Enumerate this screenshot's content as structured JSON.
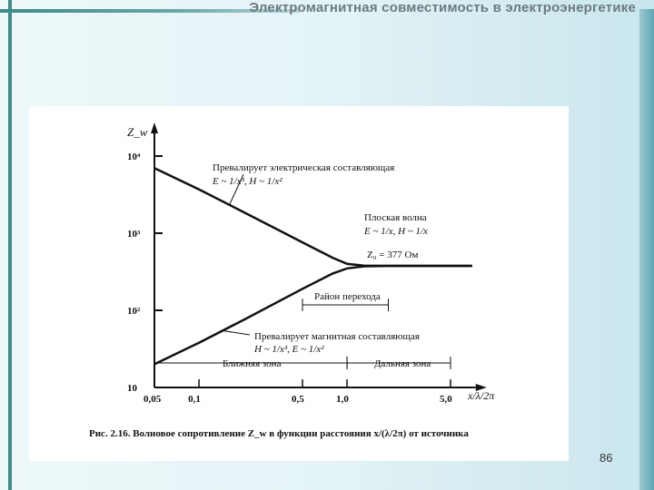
{
  "header": {
    "title": "Электромагнитная совместимость в электроэнергетике"
  },
  "page_number": "86",
  "colors": {
    "frame": "#3f8a8a",
    "background": "#e4f3f6",
    "curve": "#111111"
  },
  "chart_data": {
    "type": "line",
    "xscale": "log",
    "yscale": "log",
    "xlabel": "x/λ/2π",
    "ylabel": "Z_w",
    "xlim": [
      0.05,
      7
    ],
    "ylim": [
      10,
      20000
    ],
    "x_ticks": [
      "0,05",
      "0,1",
      "0,5",
      "1,0",
      "5,0"
    ],
    "x_tick_values": [
      0.05,
      0.1,
      0.5,
      1.0,
      5.0
    ],
    "y_ticks": [
      "10",
      "10²",
      "10³",
      "10⁴"
    ],
    "y_tick_values": [
      10,
      100,
      1000,
      10000
    ],
    "series": [
      {
        "x": [
          0.05,
          0.1,
          0.2,
          0.5,
          0.8,
          1.0,
          1.3,
          2,
          5,
          7
        ],
        "y": [
          7000,
          3700,
          1880,
          760,
          480,
          400,
          380,
          377,
          377,
          377
        ]
      },
      {
        "x": [
          0.05,
          0.1,
          0.2,
          0.5,
          0.8,
          1.0,
          1.3,
          2,
          5,
          7
        ],
        "y": [
          20,
          38,
          75,
          190,
          300,
          350,
          372,
          377,
          377,
          377
        ]
      }
    ],
    "annotations": {
      "electric": [
        "Превалирует электрическая составляющая",
        "E ~ 1/x³, H ~ 1/x²"
      ],
      "plane": [
        "Плоская волна",
        "E ~ 1/x, H ~ 1/x"
      ],
      "z0": "Z₀ = 377 Ом",
      "transition": "Район перехода",
      "magnetic": [
        "Превалирует магнитная составляющая",
        "H ~ 1/x³, E ~ 1/x²"
      ],
      "near": "Ближняя зона",
      "far": "Дальняя зона"
    },
    "caption": "Рис. 2.16. Волновое сопротивление Z_w в функции расстояния x/(λ/2π) от источника"
  }
}
